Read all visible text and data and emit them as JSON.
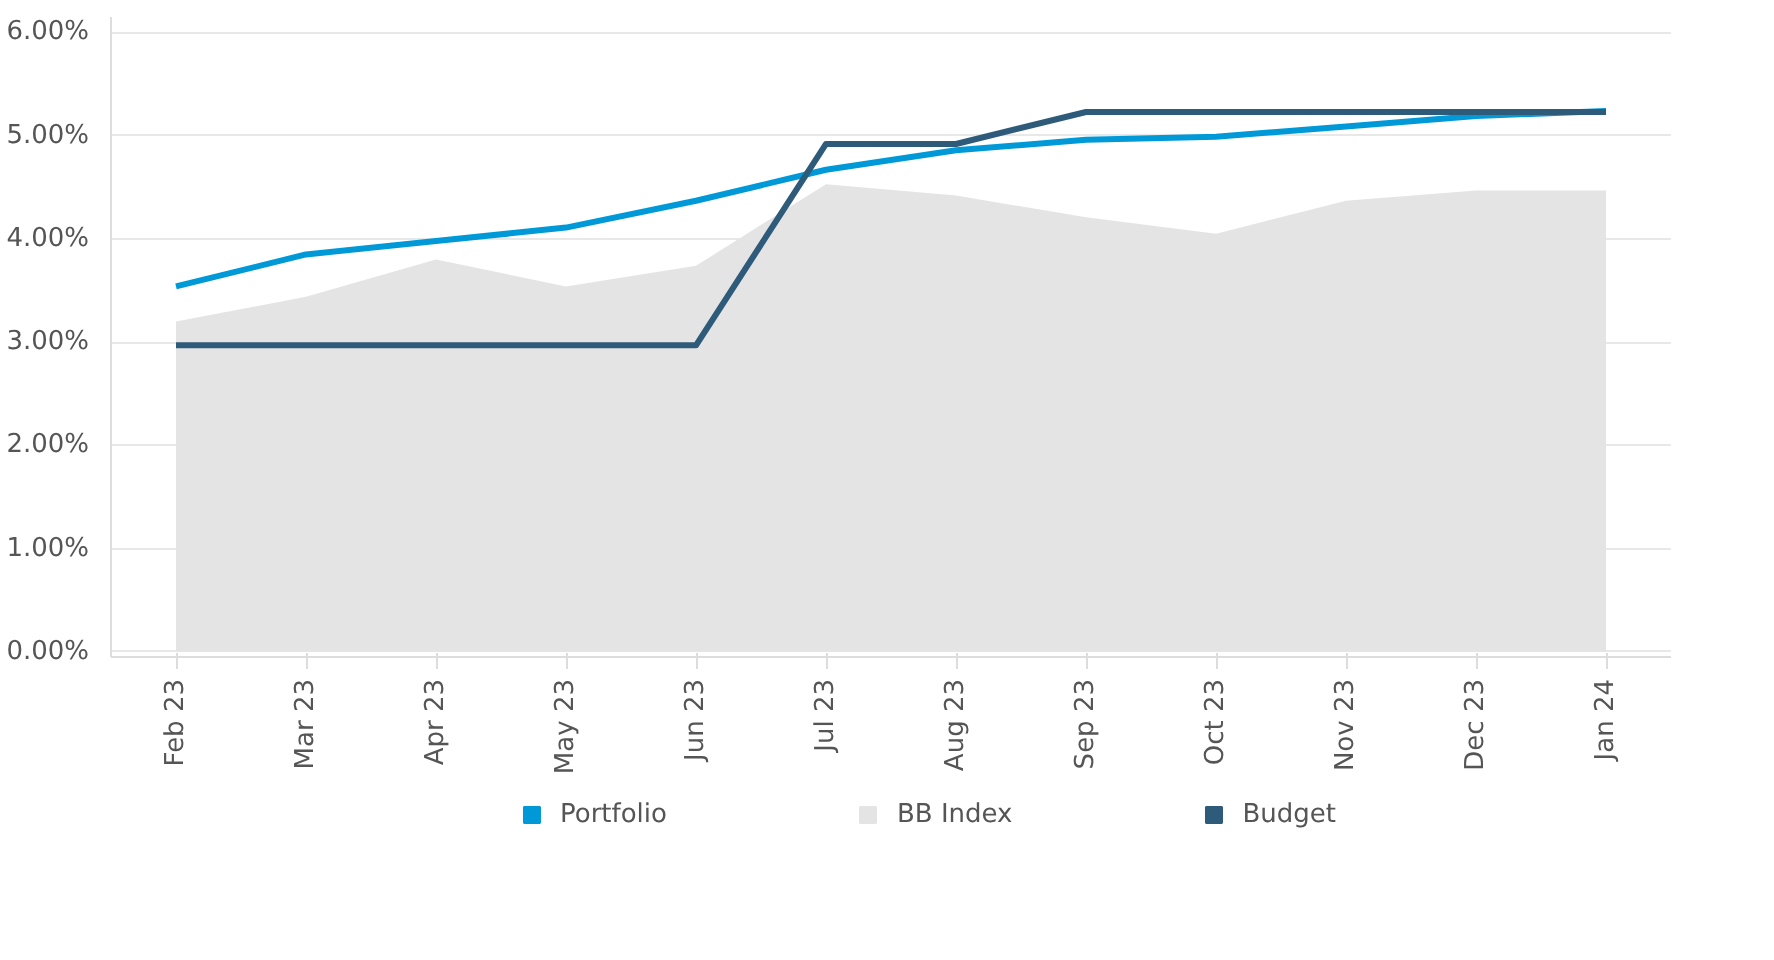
{
  "chart_data": {
    "type": "line",
    "categories": [
      "Feb 23",
      "Mar 23",
      "Apr 23",
      "May 23",
      "Jun 23",
      "Jul 23",
      "Aug 23",
      "Sep 23",
      "Oct 23",
      "Nov 23",
      "Dec 23",
      "Jan 24"
    ],
    "series": [
      {
        "name": "Portfolio",
        "color": "#0099d8",
        "values": [
          3.54,
          3.85,
          3.98,
          4.11,
          4.37,
          4.67,
          4.86,
          4.96,
          4.99,
          5.09,
          5.19,
          5.24
        ]
      },
      {
        "name": "BB Index",
        "color": "#e4e4e4",
        "type": "area",
        "values": [
          3.2,
          3.44,
          3.8,
          3.54,
          3.74,
          4.53,
          4.42,
          4.21,
          4.05,
          4.37,
          4.47,
          4.47
        ]
      },
      {
        "name": "Budget",
        "color": "#2e5b7a",
        "values": [
          2.97,
          2.97,
          2.97,
          2.97,
          2.97,
          4.92,
          4.92,
          5.23,
          5.23,
          5.23,
          5.23,
          5.23
        ]
      }
    ],
    "ylim": [
      -0.05,
      6.15
    ],
    "yticks": [
      {
        "value": 0,
        "label": "0.00%"
      },
      {
        "value": 1,
        "label": "1.00%"
      },
      {
        "value": 2,
        "label": "2.00%"
      },
      {
        "value": 3,
        "label": "3.00%"
      },
      {
        "value": 4,
        "label": "4.00%"
      },
      {
        "value": 5,
        "label": "5.00%"
      },
      {
        "value": 6,
        "label": "6.00%"
      }
    ],
    "grid": "y",
    "legend": "bottom",
    "line_style": "solid"
  }
}
